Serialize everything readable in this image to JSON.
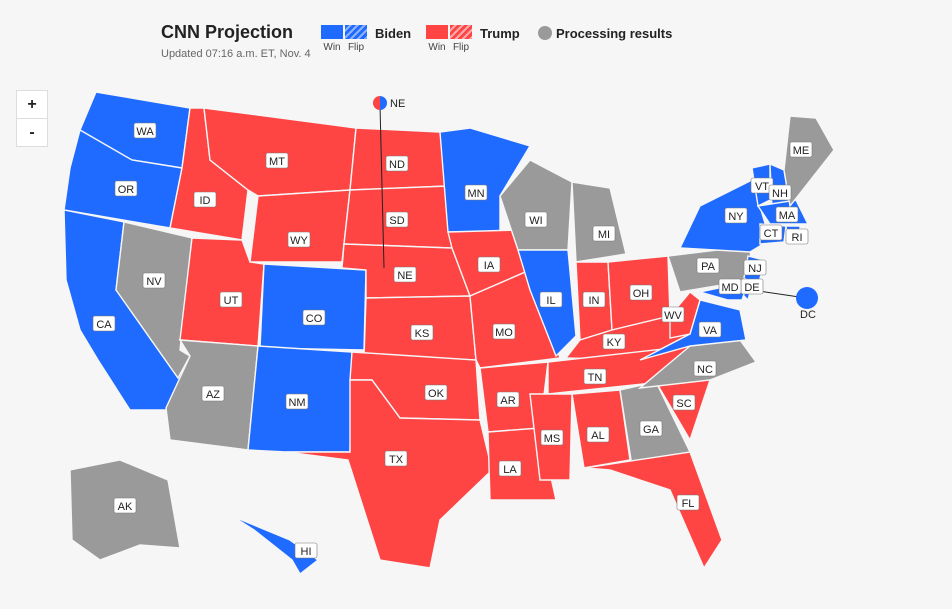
{
  "header": {
    "title": "CNN Projection",
    "updated": "Updated 07:16 a.m. ET, Nov. 4"
  },
  "legend": {
    "biden": {
      "name": "Biden",
      "win": "Win",
      "flip": "Flip",
      "color": "#1f6bff"
    },
    "trump": {
      "name": "Trump",
      "win": "Win",
      "flip": "Flip",
      "color": "#ff4444"
    },
    "processing": {
      "name": "Processing results",
      "color": "#9a9a9a"
    }
  },
  "zoom": {
    "in": "+",
    "out": "-"
  },
  "states": [
    {
      "abbr": "WA",
      "status": "biden"
    },
    {
      "abbr": "OR",
      "status": "biden"
    },
    {
      "abbr": "CA",
      "status": "biden"
    },
    {
      "abbr": "NV",
      "status": "processing"
    },
    {
      "abbr": "ID",
      "status": "trump"
    },
    {
      "abbr": "MT",
      "status": "trump"
    },
    {
      "abbr": "WY",
      "status": "trump"
    },
    {
      "abbr": "UT",
      "status": "trump"
    },
    {
      "abbr": "AZ",
      "status": "processing"
    },
    {
      "abbr": "CO",
      "status": "biden"
    },
    {
      "abbr": "NM",
      "status": "biden"
    },
    {
      "abbr": "ND",
      "status": "trump"
    },
    {
      "abbr": "SD",
      "status": "trump"
    },
    {
      "abbr": "NE",
      "status": "trump"
    },
    {
      "abbr": "KS",
      "status": "trump"
    },
    {
      "abbr": "OK",
      "status": "trump"
    },
    {
      "abbr": "TX",
      "status": "trump"
    },
    {
      "abbr": "MN",
      "status": "biden"
    },
    {
      "abbr": "IA",
      "status": "trump"
    },
    {
      "abbr": "MO",
      "status": "trump"
    },
    {
      "abbr": "AR",
      "status": "trump"
    },
    {
      "abbr": "LA",
      "status": "trump"
    },
    {
      "abbr": "WI",
      "status": "processing"
    },
    {
      "abbr": "IL",
      "status": "biden"
    },
    {
      "abbr": "MI",
      "status": "processing"
    },
    {
      "abbr": "IN",
      "status": "trump"
    },
    {
      "abbr": "OH",
      "status": "trump"
    },
    {
      "abbr": "KY",
      "status": "trump"
    },
    {
      "abbr": "TN",
      "status": "trump"
    },
    {
      "abbr": "MS",
      "status": "trump"
    },
    {
      "abbr": "AL",
      "status": "trump"
    },
    {
      "abbr": "GA",
      "status": "processing"
    },
    {
      "abbr": "FL",
      "status": "trump"
    },
    {
      "abbr": "SC",
      "status": "trump"
    },
    {
      "abbr": "NC",
      "status": "processing"
    },
    {
      "abbr": "VA",
      "status": "biden"
    },
    {
      "abbr": "WV",
      "status": "trump"
    },
    {
      "abbr": "PA",
      "status": "processing"
    },
    {
      "abbr": "NY",
      "status": "biden"
    },
    {
      "abbr": "NJ",
      "status": "biden"
    },
    {
      "abbr": "DE",
      "status": "biden"
    },
    {
      "abbr": "MD",
      "status": "biden"
    },
    {
      "abbr": "VT",
      "status": "biden"
    },
    {
      "abbr": "NH",
      "status": "biden"
    },
    {
      "abbr": "MA",
      "status": "biden"
    },
    {
      "abbr": "CT",
      "status": "biden"
    },
    {
      "abbr": "RI",
      "status": "biden"
    },
    {
      "abbr": "ME",
      "status": "processing"
    },
    {
      "abbr": "AK",
      "status": "processing"
    },
    {
      "abbr": "HI",
      "status": "biden"
    },
    {
      "abbr": "DC",
      "status": "biden"
    },
    {
      "abbr": "NE-split",
      "label": "NE",
      "status": "split"
    }
  ]
}
